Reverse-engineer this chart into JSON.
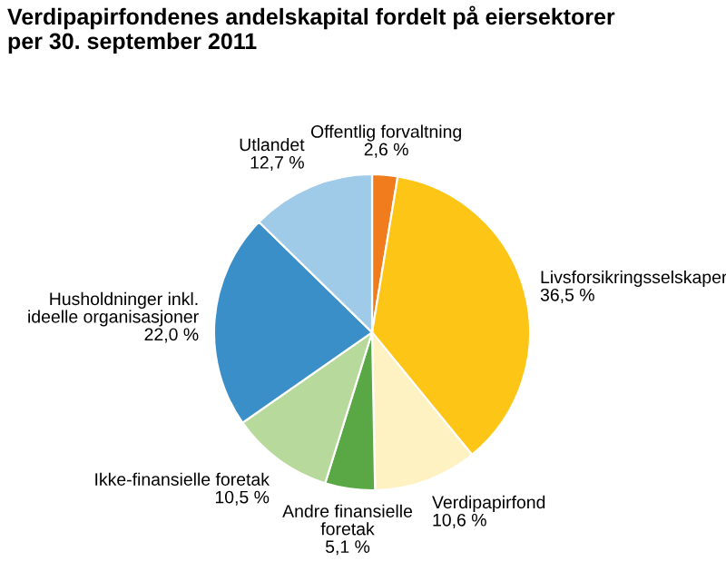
{
  "chart_data": {
    "type": "pie",
    "title": "Verdipapirfondenes andelskapital fordelt på eiersektorer\nper 30. september 2011",
    "categories": [
      "Offentlig forvaltning",
      "Livsforsikringsselskaper",
      "Verdipapirfond",
      "Andre finansielle\nforetak",
      "Ikke-finansielle foretak",
      "Husholdninger inkl.\nideelle organisasjoner",
      "Utlandet"
    ],
    "values": [
      2.6,
      36.5,
      10.6,
      5.1,
      10.5,
      22.0,
      12.7
    ],
    "value_labels": [
      "2,6 %",
      "36,5 %",
      "10,6 %",
      "5,1 %",
      "10,5 %",
      "22,0 %",
      "12,7 %"
    ],
    "colors": [
      "#f07c1e",
      "#fdc516",
      "#fff2c2",
      "#5aa845",
      "#b7d99b",
      "#3a8fc8",
      "#a0cbe8"
    ]
  }
}
